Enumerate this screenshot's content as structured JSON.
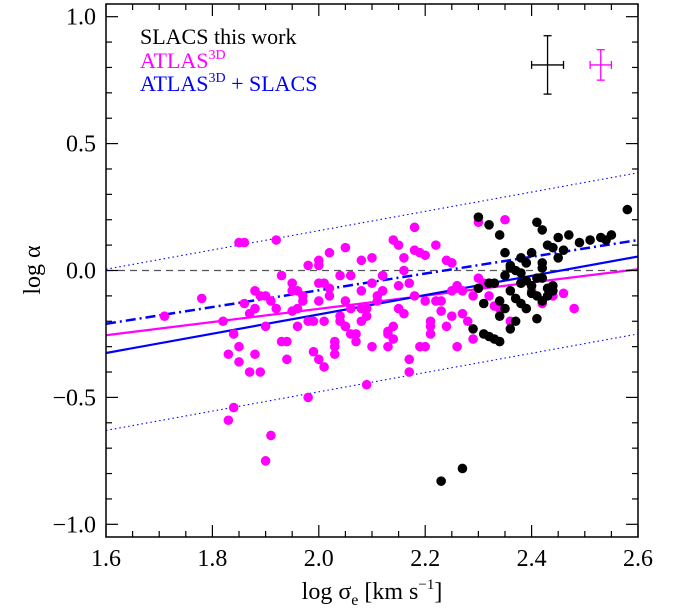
{
  "chart_data": {
    "type": "scatter",
    "xlabel": "log σ",
    "xlabel_sub": "e",
    "xlabel_units": "[km s",
    "xlabel_units_sup": "−1",
    "xlabel_units_close": "]",
    "ylabel": "log α",
    "xlim": [
      1.6,
      2.6
    ],
    "ylim": [
      -1.05,
      1.05
    ],
    "xticks": [
      "1.6",
      "1.8",
      "2.0",
      "2.2",
      "2.4",
      "2.6"
    ],
    "xtick_values": [
      1.6,
      1.8,
      2.0,
      2.2,
      2.4,
      2.6
    ],
    "yticks": [
      "1.0",
      "0.5",
      "0.0",
      "−0.5",
      "−1.0"
    ],
    "ytick_values": [
      1.0,
      0.5,
      0.0,
      -0.5,
      -1.0
    ],
    "legend_position": "top-left",
    "legend": [
      {
        "text": "SLACS this work",
        "sup": "",
        "suffix": "",
        "color": "#000000"
      },
      {
        "text": "ATLAS",
        "sup": "3D",
        "suffix": "",
        "color": "#ff00ff"
      },
      {
        "text": "ATLAS",
        "sup": "3D",
        "suffix": " + SLACS",
        "color": "#0000ff"
      }
    ],
    "error_bars": [
      {
        "color": "#000000",
        "x": 2.43,
        "y": 0.81,
        "dx": 0.03,
        "dy": 0.115
      },
      {
        "color": "#ff00ff",
        "x": 2.53,
        "y": 0.81,
        "dx": 0.02,
        "dy": 0.06
      }
    ],
    "reference_line": {
      "y": 0.0,
      "style": "dashed",
      "color": "#555555"
    },
    "fit_lines": [
      {
        "color": "#ff00ff",
        "style": "solid",
        "x": [
          1.6,
          2.6
        ],
        "y": [
          -0.255,
          0.005
        ]
      },
      {
        "color": "#0000ff",
        "style": "solid",
        "x": [
          1.6,
          2.6
        ],
        "y": [
          -0.325,
          0.055
        ]
      },
      {
        "color": "#0000ff",
        "style": "dashdot",
        "x": [
          1.6,
          2.6
        ],
        "y": [
          -0.21,
          0.12
        ]
      },
      {
        "color": "#0000ff",
        "style": "dotted",
        "x": [
          1.6,
          2.6
        ],
        "y": [
          0.005,
          0.385
        ]
      },
      {
        "color": "#0000ff",
        "style": "dotted",
        "x": [
          1.6,
          2.6
        ],
        "y": [
          -0.63,
          -0.25
        ]
      }
    ],
    "series": [
      {
        "name": "SLACS this work",
        "color": "#000000",
        "x": [
          2.23,
          2.27,
          2.3,
          2.32,
          2.34,
          2.35,
          2.36,
          2.37,
          2.38,
          2.39,
          2.41,
          2.42,
          2.43,
          2.45,
          2.47,
          2.49,
          2.51,
          2.53,
          2.54,
          2.55,
          2.58,
          2.3,
          2.34,
          2.37,
          2.39,
          2.41,
          2.42,
          2.43,
          2.44,
          2.32,
          2.35,
          2.38,
          2.4,
          2.36,
          2.33,
          2.31,
          2.29,
          2.38,
          2.4,
          2.42,
          2.44,
          2.46,
          2.37,
          2.33,
          2.35,
          2.38,
          2.4,
          2.41,
          2.43,
          2.34,
          2.32,
          2.36,
          2.39,
          2.42,
          2.45,
          2.44,
          2.36,
          2.34,
          2.31,
          2.39,
          2.41,
          2.42
        ],
        "y": [
          -0.83,
          -0.78,
          0.21,
          0.18,
          0.14,
          0.07,
          0.02,
          0.0,
          -0.01,
          0.03,
          0.19,
          0.16,
          0.1,
          0.13,
          0.14,
          0.11,
          0.12,
          0.13,
          0.12,
          0.14,
          0.24,
          -0.07,
          -0.12,
          -0.2,
          -0.15,
          -0.19,
          -0.12,
          -0.1,
          -0.08,
          -0.05,
          -0.02,
          -0.05,
          -0.09,
          -0.23,
          -0.27,
          -0.25,
          -0.23,
          0.05,
          0.07,
          0.01,
          0.09,
          0.08,
          -0.11,
          -0.05,
          -0.15,
          -0.13,
          -0.06,
          -0.03,
          -0.07,
          -0.28,
          -0.26,
          -0.08,
          -0.04,
          0.03,
          0.05,
          -0.06,
          0.01,
          -0.18,
          -0.13,
          0.03,
          -0.1,
          -0.03
        ]
      },
      {
        "name": "ATLAS3D",
        "color": "#ff00ff",
        "x": [
          1.71,
          1.78,
          1.82,
          1.83,
          1.84,
          1.85,
          1.86,
          1.88,
          1.89,
          1.9,
          1.91,
          1.84,
          1.85,
          1.87,
          1.88,
          1.92,
          1.93,
          1.95,
          1.96,
          1.97,
          1.98,
          1.99,
          2.0,
          2.02,
          2.04,
          2.05,
          2.07,
          2.08,
          2.1,
          2.12,
          2.14,
          2.16,
          2.18,
          2.2,
          2.22,
          2.24,
          2.26,
          2.28,
          2.3,
          2.32,
          2.34,
          2.36,
          2.38,
          2.4,
          2.42,
          2.44,
          2.46,
          2.48,
          1.9,
          1.94,
          1.96,
          2.0,
          2.01,
          2.03,
          2.05,
          2.06,
          2.08,
          2.09,
          2.11,
          2.13,
          2.15,
          2.17,
          2.19,
          2.21,
          2.23,
          2.25,
          2.27,
          2.29,
          2.31,
          2.33,
          1.92,
          1.95,
          1.98,
          2.0,
          2.02,
          2.04,
          2.06,
          2.08,
          2.1,
          2.12,
          2.14,
          2.16,
          2.18,
          2.2,
          2.22,
          2.24,
          2.26,
          1.86,
          1.88,
          1.9,
          1.93,
          1.97,
          2.01,
          2.03,
          2.07,
          2.11,
          2.15,
          2.19,
          2.23,
          2.27,
          1.94,
          1.99,
          2.03,
          2.09,
          2.13,
          2.17,
          2.21,
          2.25,
          2.29,
          2.01,
          2.05,
          2.09,
          2.13,
          2.17,
          2.21,
          2.25,
          1.96,
          2.0,
          2.04,
          2.08,
          2.12,
          2.16,
          2.2,
          1.98,
          2.06,
          2.14,
          2.18,
          2.02,
          2.1,
          1.91,
          1.89,
          1.87,
          1.83,
          1.85,
          1.95,
          2.0,
          2.05,
          2.15,
          2.25,
          2.3,
          2.35
        ],
        "y": [
          -0.18,
          -0.11,
          -0.2,
          -0.59,
          -0.54,
          0.11,
          0.11,
          -0.08,
          -0.1,
          -0.75,
          -0.65,
          -0.25,
          -0.3,
          -0.4,
          -0.33,
          0.12,
          -0.02,
          -0.05,
          -0.15,
          -0.12,
          0.02,
          -0.2,
          -0.35,
          0.07,
          -0.18,
          -0.12,
          -0.28,
          -0.15,
          -0.05,
          -0.08,
          -0.22,
          0.0,
          0.08,
          -0.3,
          -0.12,
          0.04,
          -0.06,
          -0.2,
          -0.03,
          -0.1,
          -0.15,
          -0.2,
          -0.05,
          -0.08,
          -0.13,
          -0.1,
          -0.09,
          -0.15,
          -0.1,
          -0.28,
          -0.22,
          -0.12,
          -0.05,
          -0.3,
          0.09,
          -0.25,
          -0.08,
          -0.18,
          -0.1,
          -0.25,
          -0.15,
          -0.05,
          0.07,
          -0.22,
          -0.12,
          0.03,
          -0.17,
          -0.1,
          -0.05,
          -0.14,
          -0.15,
          -0.08,
          -0.2,
          -0.05,
          -0.1,
          -0.2,
          -0.15,
          -0.2,
          -0.3,
          -0.02,
          -0.27,
          -0.17,
          -0.1,
          -0.12,
          0.1,
          -0.22,
          -0.3,
          -0.13,
          -0.15,
          -0.22,
          -0.28,
          -0.1,
          -0.2,
          -0.33,
          -0.25,
          -0.12,
          -0.06,
          -0.3,
          -0.16,
          -0.08,
          -0.35,
          -0.32,
          -0.28,
          -0.15,
          -0.24,
          -0.35,
          -0.2,
          -0.08,
          -0.27,
          -0.38,
          -0.22,
          -0.45,
          -0.3,
          -0.4,
          -0.25,
          -0.18,
          -0.08,
          0.02,
          -0.02,
          0.04,
          -0.02,
          0.05,
          0.06,
          -0.5,
          -0.02,
          0.12,
          0.17,
          -0.07,
          0.05,
          -0.12,
          -0.4,
          -0.17,
          -0.33,
          -0.36,
          -0.16,
          0.04,
          -0.22,
          0.1,
          0.03,
          0.19,
          0.2
        ]
      }
    ]
  }
}
